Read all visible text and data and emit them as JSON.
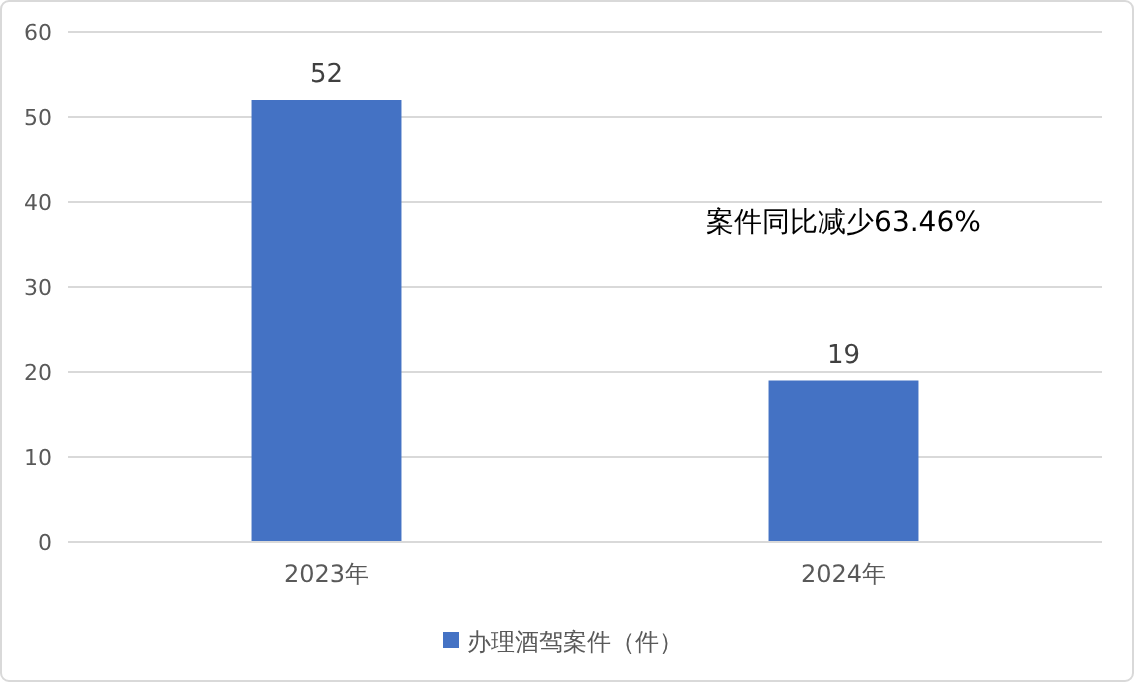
{
  "chart_data": {
    "type": "bar",
    "categories": [
      "2023年",
      "2024年"
    ],
    "series": [
      {
        "name": "办理酒驾案件（件）",
        "color": "#4472c4",
        "values": [
          52,
          19
        ]
      }
    ],
    "ylim": [
      0,
      60
    ],
    "yticks": [
      0,
      10,
      20,
      30,
      40,
      50,
      60
    ],
    "grid": "y",
    "legend": "bottom",
    "data_labels": true,
    "annotations": [
      "案件同比减少63.46%"
    ]
  }
}
